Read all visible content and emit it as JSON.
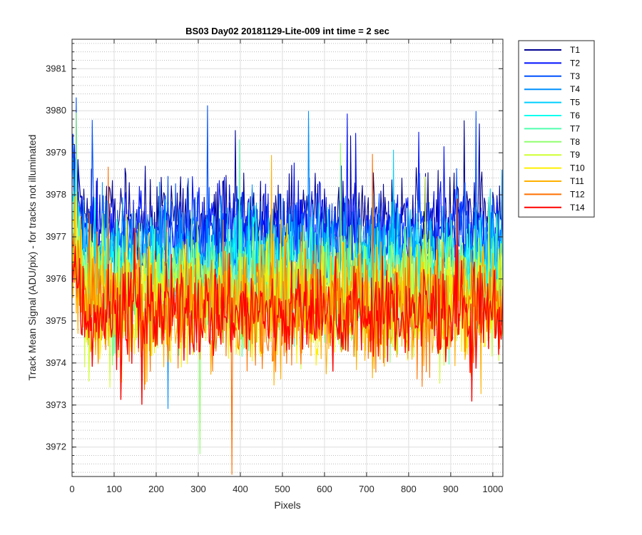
{
  "chart_data": {
    "type": "line",
    "title": "BS03 Day02 20181129-Lite-009 int time = 2 sec",
    "xlabel": "Pixels",
    "ylabel": "Track Mean Signal (ADU/pix) - for tracks not illuminated",
    "xlim": [
      0,
      1024
    ],
    "ylim": [
      3971.3,
      3981.7
    ],
    "xticks": [
      0,
      100,
      200,
      300,
      400,
      500,
      600,
      700,
      800,
      900,
      1000
    ],
    "yticks": [
      3972,
      3973,
      3974,
      3975,
      3976,
      3977,
      3978,
      3979,
      3980,
      3981
    ],
    "grid": true,
    "minor_grid_y": true,
    "legend_position": "outside-top-right",
    "series": [
      {
        "name": "T1",
        "color": "#00008f",
        "mean": 3977.4,
        "spread": 0.75
      },
      {
        "name": "T2",
        "color": "#0010ff",
        "mean": 3977.2,
        "spread": 0.75
      },
      {
        "name": "T3",
        "color": "#0050ff",
        "mean": 3976.9,
        "spread": 0.8
      },
      {
        "name": "T4",
        "color": "#0090ff",
        "mean": 3976.6,
        "spread": 0.85
      },
      {
        "name": "T5",
        "color": "#00cfff",
        "mean": 3976.3,
        "spread": 0.9
      },
      {
        "name": "T6",
        "color": "#10ffef",
        "mean": 3976.1,
        "spread": 0.9
      },
      {
        "name": "T7",
        "color": "#50ffaf",
        "mean": 3975.9,
        "spread": 0.95
      },
      {
        "name": "T8",
        "color": "#90ff6f",
        "mean": 3975.7,
        "spread": 0.95
      },
      {
        "name": "T9",
        "color": "#cfff30",
        "mean": 3975.6,
        "spread": 1.0
      },
      {
        "name": "T10",
        "color": "#ffef00",
        "mean": 3975.5,
        "spread": 1.0
      },
      {
        "name": "T11",
        "color": "#ffaf00",
        "mean": 3975.4,
        "spread": 1.05
      },
      {
        "name": "T12",
        "color": "#ff7000",
        "mean": 3975.3,
        "spread": 1.05
      },
      {
        "name": "T14",
        "color": "#ff0000",
        "mean": 3975.2,
        "spread": 0.8
      }
    ]
  }
}
